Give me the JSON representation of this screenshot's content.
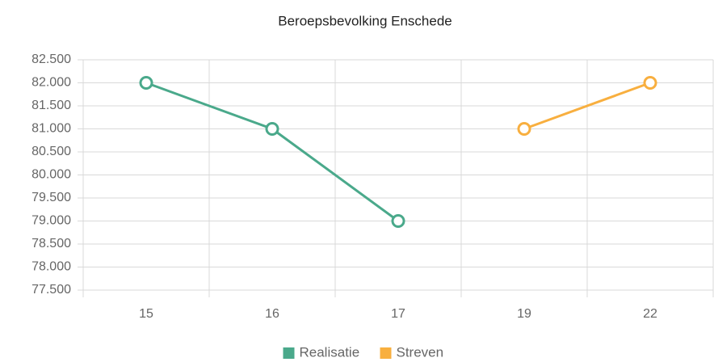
{
  "chart_data": {
    "type": "line",
    "title": "Beroepsbevolking Enschede",
    "categories": [
      "15",
      "16",
      "17",
      "19",
      "22"
    ],
    "series": [
      {
        "name": "Realisatie",
        "color": "#4aa98b",
        "values": [
          82000,
          81000,
          79000,
          null,
          null
        ]
      },
      {
        "name": "Streven",
        "color": "#f8af3f",
        "values": [
          null,
          null,
          null,
          81000,
          82000
        ]
      }
    ],
    "ylim": [
      77500,
      82500
    ],
    "yticks": [
      {
        "value": 77500,
        "label": "77.500"
      },
      {
        "value": 78000,
        "label": "78.000"
      },
      {
        "value": 78500,
        "label": "78.500"
      },
      {
        "value": 79000,
        "label": "79.000"
      },
      {
        "value": 79500,
        "label": "79.500"
      },
      {
        "value": 80000,
        "label": "80.000"
      },
      {
        "value": 80500,
        "label": "80.500"
      },
      {
        "value": 81000,
        "label": "81.000"
      },
      {
        "value": 81500,
        "label": "81.500"
      },
      {
        "value": 82000,
        "label": "82.000"
      },
      {
        "value": 82500,
        "label": "82.500"
      }
    ],
    "grid": true,
    "legend": "bottom"
  }
}
